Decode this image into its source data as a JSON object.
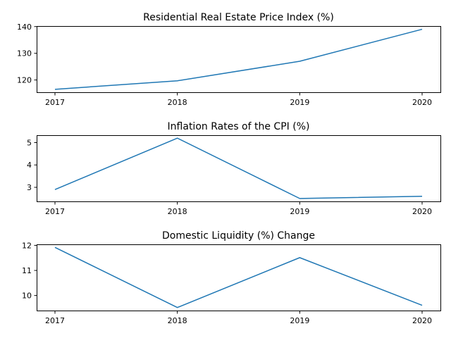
{
  "chart_data": [
    {
      "type": "line",
      "title": "Residential Real Estate Price Index (%)",
      "xlabel": "",
      "ylabel": "",
      "categories": [
        "2017",
        "2018",
        "2019",
        "2020"
      ],
      "values": [
        116.5,
        119.7,
        127.0,
        139.0
      ],
      "color": "#1f77b4",
      "yticks": [
        120,
        130,
        140
      ],
      "ylim": [
        115.4,
        140.2
      ],
      "grid": false
    },
    {
      "type": "line",
      "title": "Inflation Rates of the CPI (%)",
      "xlabel": "",
      "ylabel": "",
      "categories": [
        "2017",
        "2018",
        "2019",
        "2020"
      ],
      "values": [
        2.9,
        5.2,
        2.5,
        2.6
      ],
      "color": "#1f77b4",
      "yticks": [
        3,
        4,
        5
      ],
      "ylim": [
        2.37,
        5.33
      ],
      "grid": false
    },
    {
      "type": "line",
      "title": "Domestic Liquidity (%) Change",
      "xlabel": "",
      "ylabel": "",
      "categories": [
        "2017",
        "2018",
        "2019",
        "2020"
      ],
      "values": [
        11.92,
        9.52,
        11.51,
        9.61
      ],
      "color": "#1f77b4",
      "yticks": [
        10,
        11,
        12
      ],
      "ylim": [
        9.4,
        12.04
      ],
      "grid": false
    }
  ]
}
